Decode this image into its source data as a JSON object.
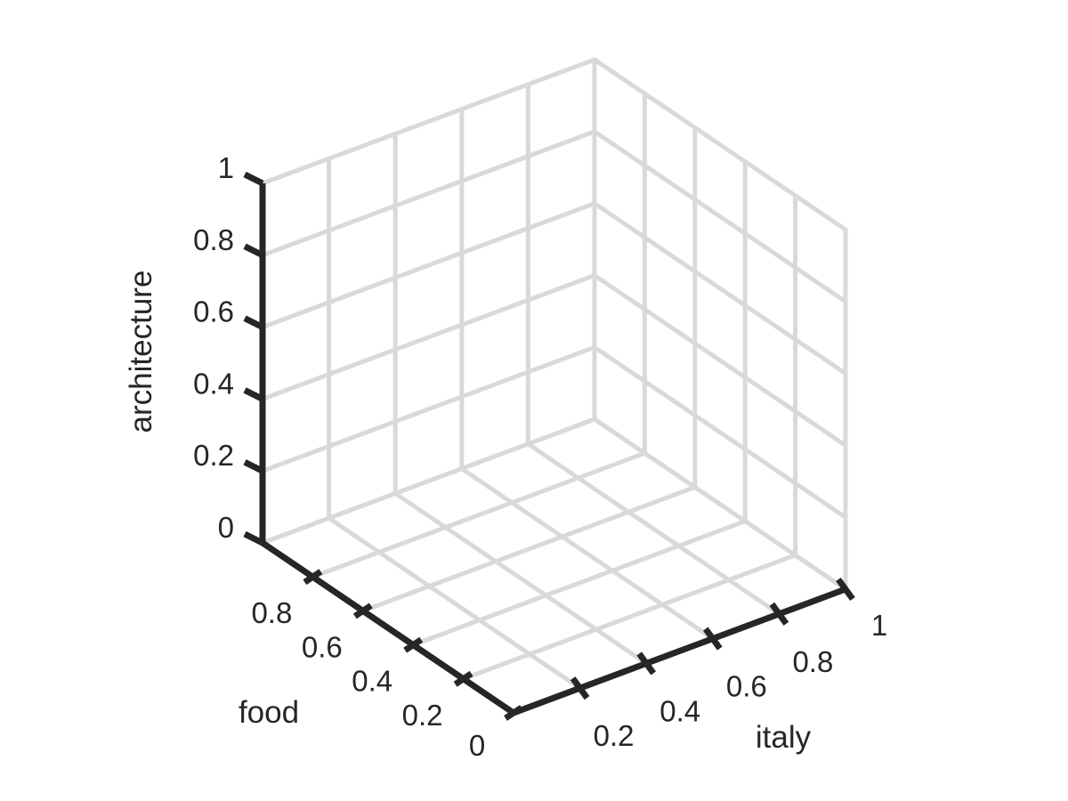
{
  "chart_data": {
    "type": "scatter",
    "dimensions": "3d",
    "title": "",
    "xlabel": "italy",
    "ylabel": "food",
    "zlabel": "architecture",
    "xlim": [
      0,
      1
    ],
    "ylim": [
      0,
      1
    ],
    "zlim": [
      0,
      1
    ],
    "xticks": [
      0.2,
      0.4,
      0.6,
      0.8,
      1
    ],
    "xtick_labels": [
      "0.2",
      "0.4",
      "0.6",
      "0.8",
      "1"
    ],
    "yticks": [
      0,
      0.2,
      0.4,
      0.6,
      0.8
    ],
    "ytick_labels": [
      "0",
      "0.2",
      "0.4",
      "0.6",
      "0.8"
    ],
    "zticks": [
      0,
      0.2,
      0.4,
      0.6,
      0.8,
      1
    ],
    "ztick_labels": [
      "0",
      "0.2",
      "0.4",
      "0.6",
      "0.8",
      "1"
    ],
    "grid": true,
    "series": [
      {
        "values": []
      }
    ],
    "colors": {
      "axis": "#262626",
      "grid": "#d9d9d9",
      "background": "#ffffff"
    }
  }
}
